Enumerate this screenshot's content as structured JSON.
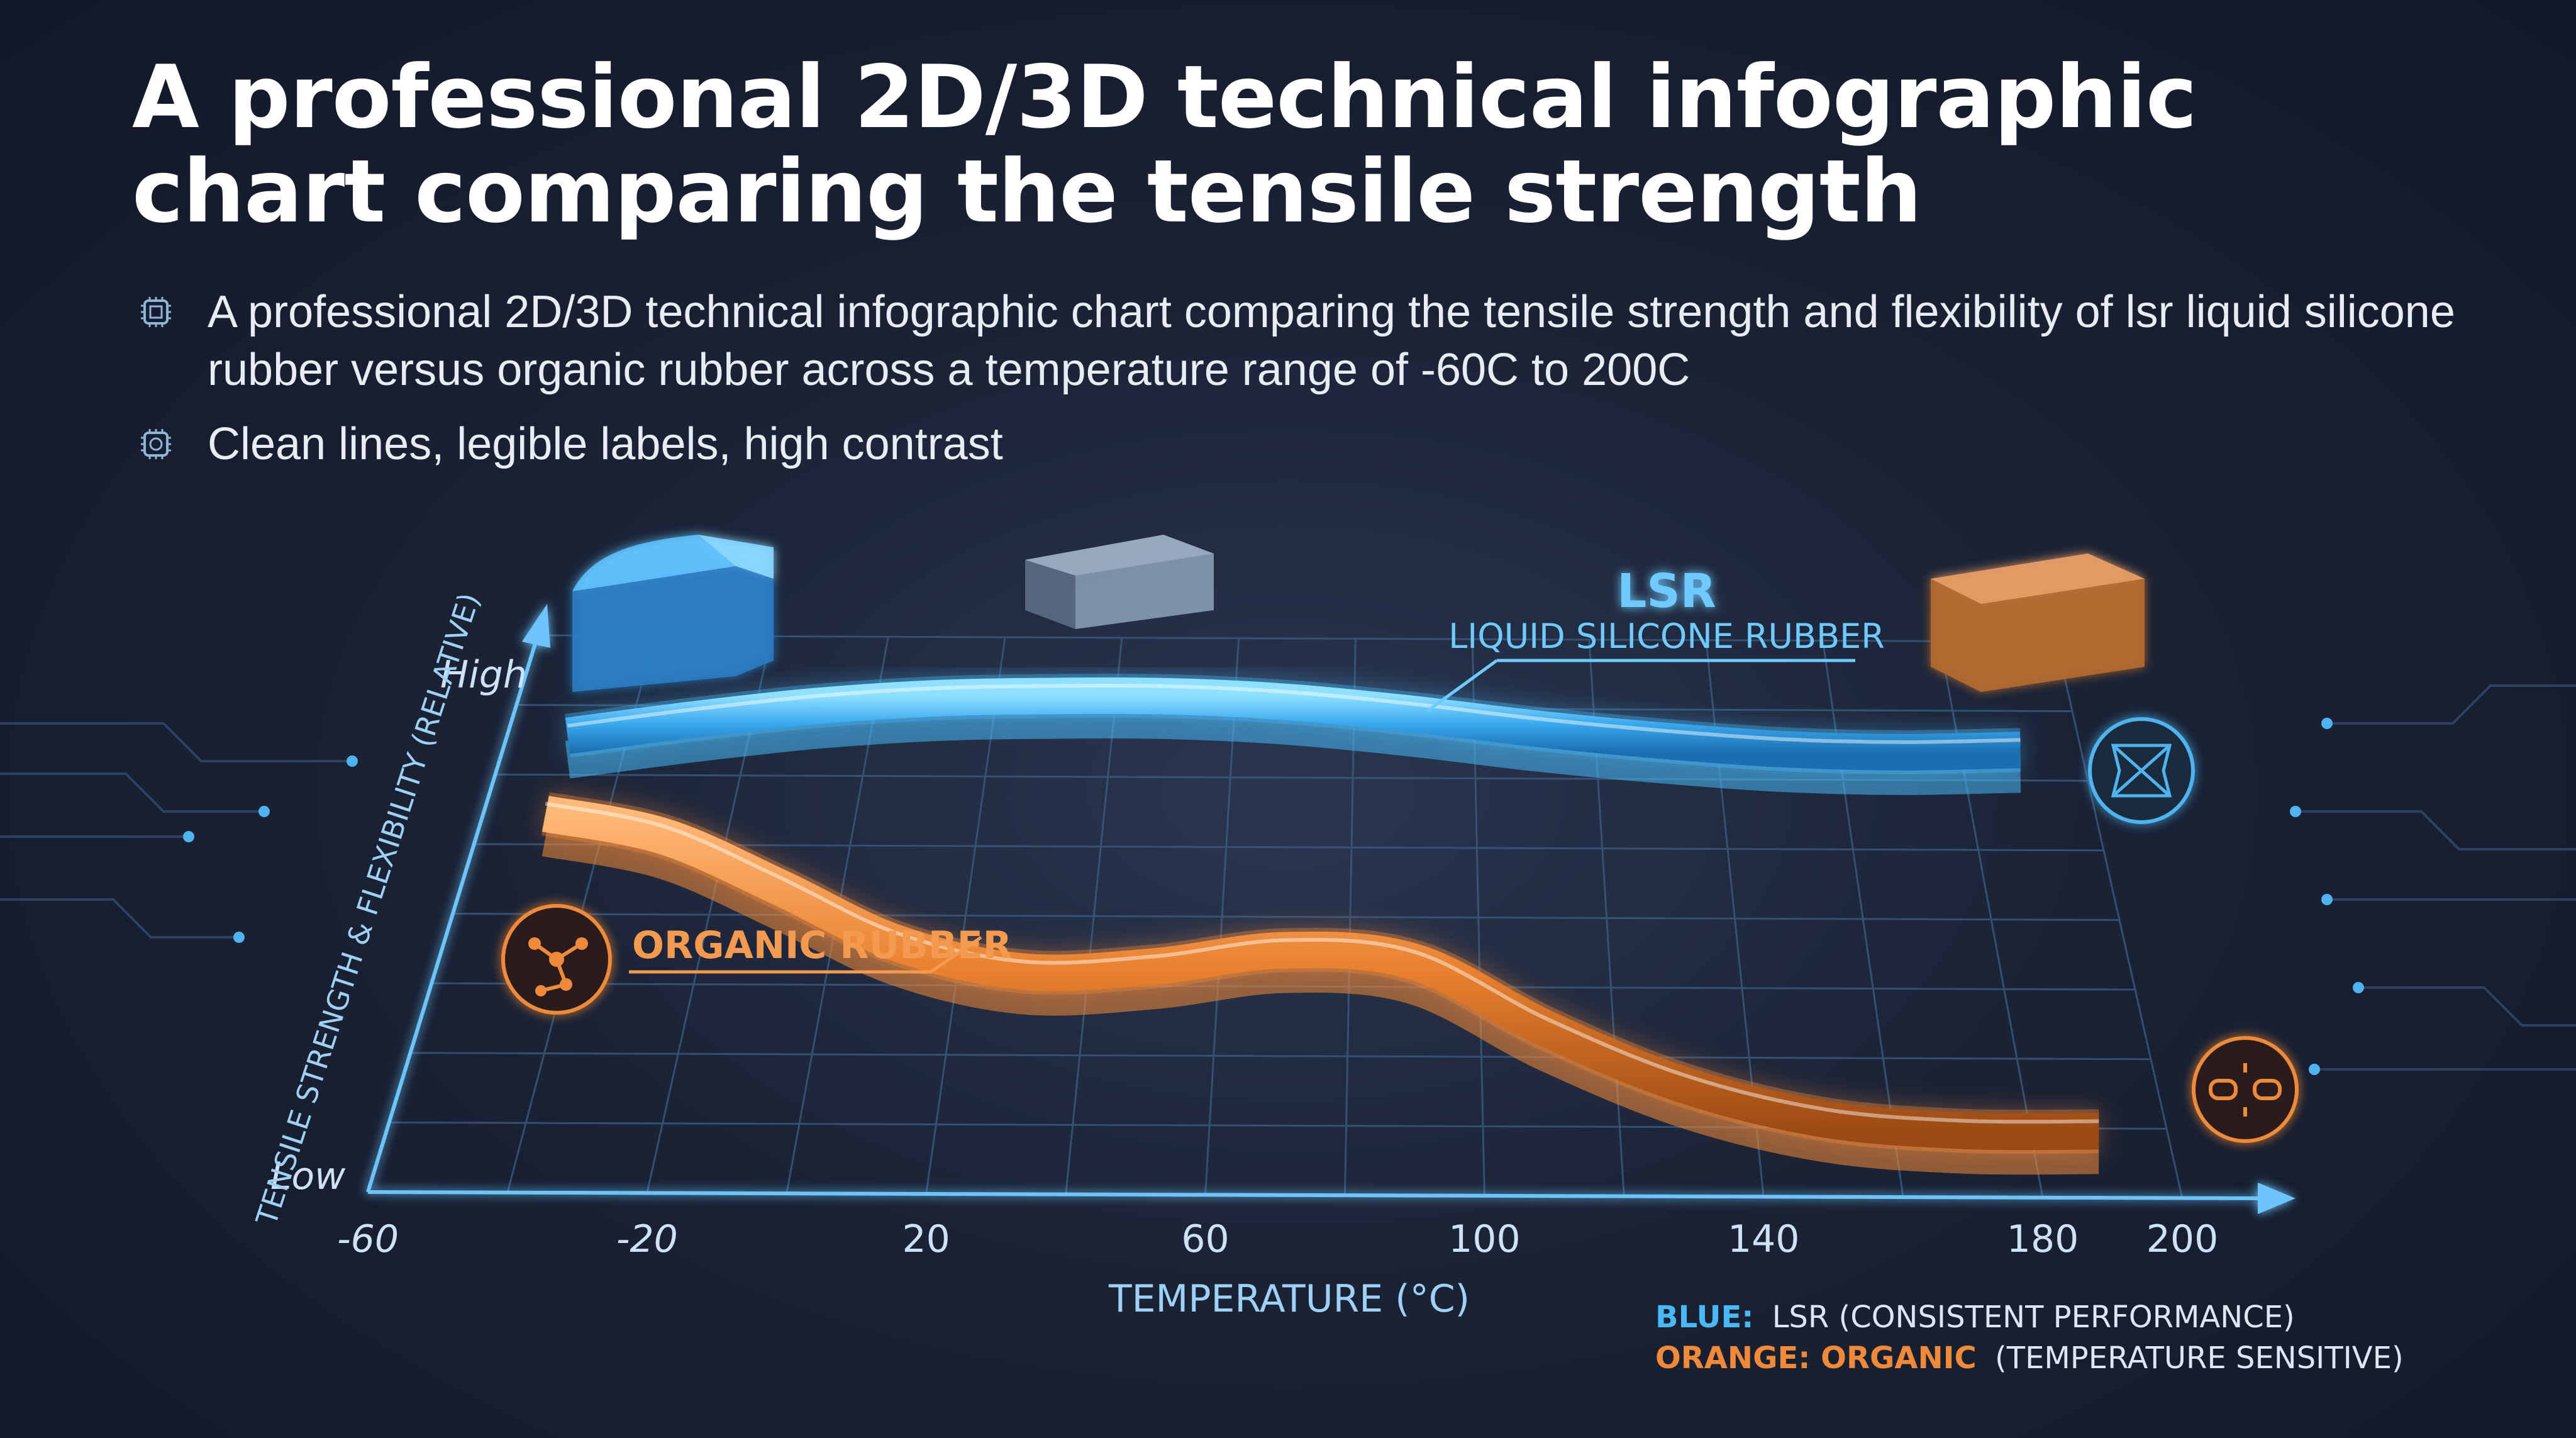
{
  "title": "A professional 2D/3D technical infographic chart comparing the tensile strength",
  "bullets": [
    {
      "icon": "chip-icon",
      "text": "A professional 2D/3D technical infographic chart comparing the tensile strength and flexibility of lsr liquid silicone rubber versus organic rubber across a temperature range of -60C to 200C"
    },
    {
      "icon": "chip-icon",
      "text": "Clean lines, legible labels, high contrast"
    }
  ],
  "chart_data": {
    "type": "line",
    "xlabel": "TEMPERATURE (°C)",
    "ylabel": "TENSILE STRENGTH & FLEXIBILITY (RELATIVE)",
    "x_ticks": [
      "-60",
      "-20",
      "20",
      "60",
      "100",
      "140",
      "180",
      "200"
    ],
    "xlim": [
      -60,
      200
    ],
    "y_tick_high": "High",
    "y_tick_low": "Low",
    "ylim": [
      0,
      1
    ],
    "series": [
      {
        "name": "LSR",
        "subtitle": "LIQUID SILICONE RUBBER",
        "color": "#49b8f5",
        "x": [
          -50,
          -30,
          -10,
          10,
          30,
          50,
          70,
          90,
          110,
          130,
          150,
          170,
          190
        ],
        "values": [
          0.82,
          0.85,
          0.875,
          0.89,
          0.895,
          0.895,
          0.885,
          0.865,
          0.84,
          0.82,
          0.805,
          0.8,
          0.805
        ]
      },
      {
        "name": "ORGANIC RUBBER",
        "color": "#f08a3a",
        "x": [
          -50,
          -30,
          -10,
          10,
          30,
          50,
          70,
          90,
          110,
          130,
          150,
          170,
          190
        ],
        "values": [
          0.68,
          0.64,
          0.55,
          0.45,
          0.4,
          0.41,
          0.44,
          0.42,
          0.3,
          0.2,
          0.14,
          0.12,
          0.12
        ]
      }
    ],
    "legend": [
      {
        "key": "BLUE:",
        "label": "LSR (CONSISTENT PERFORMANCE)",
        "color": "#49b8f5"
      },
      {
        "key": "ORANGE: ORGANIC",
        "label": "(TEMPERATURE SENSITIVE)",
        "color": "#f08a3a"
      }
    ],
    "icons": [
      "molecule-icon",
      "flex-network-icon",
      "broken-chain-icon"
    ],
    "grid": true,
    "legend_position": "bottom-right"
  }
}
